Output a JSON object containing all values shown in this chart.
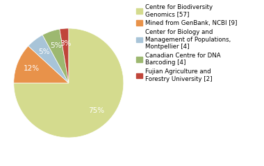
{
  "labels": [
    "Centre for Biodiversity\nGenomics [57]",
    "Mined from GenBank, NCBI [9]",
    "Center for Biology and\nManagement of Populations,\nMontpellier [4]",
    "Canadian Centre for DNA\nBarcoding [4]",
    "Fujian Agriculture and\nForestry University [2]"
  ],
  "values": [
    57,
    9,
    4,
    4,
    2
  ],
  "colors": [
    "#d4db8e",
    "#e8924a",
    "#a8c4d8",
    "#9db870",
    "#c0453a"
  ],
  "background_color": "#ffffff",
  "text_color": "#ffffff",
  "pct_fontsize": 7.5,
  "legend_fontsize": 6.2,
  "startangle": 90
}
